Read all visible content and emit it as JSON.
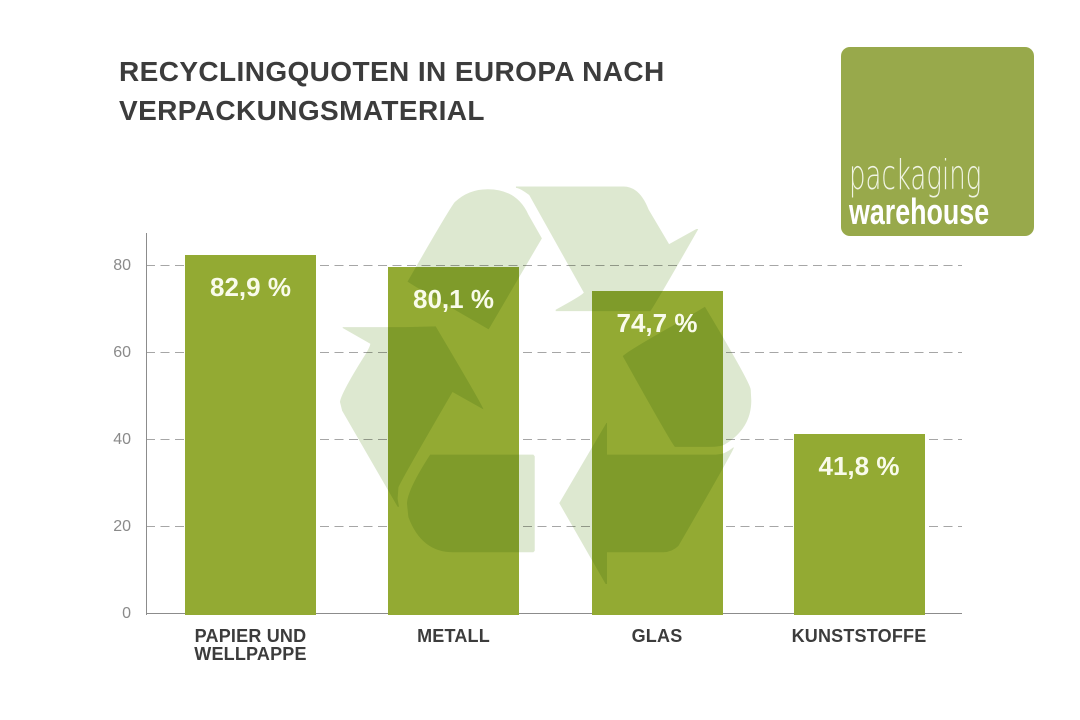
{
  "page": {
    "background": "#ffffff"
  },
  "title": {
    "line1": "RECYCLINGQUOTEN IN EUROPA NACH",
    "line2": "VERPACKUNGSMATERIAL",
    "color": "#3c3c3c"
  },
  "logo": {
    "word1": "packaging",
    "word2": "warehouse",
    "bg_color": "#98a94b",
    "word1_color": "#f0f4e3",
    "word2_color": "#ffffff"
  },
  "watermark": {
    "name": "recycling-symbol",
    "glyph": "♻",
    "color": "#dde8d0"
  },
  "chart_data": {
    "type": "bar",
    "categories": [
      "PAPIER UND WELLPAPPE",
      "METALL",
      "GLAS",
      "KUNSTSTOFFE"
    ],
    "values": [
      82.9,
      80.1,
      74.7,
      41.8
    ],
    "value_labels": [
      "82,9 %",
      "80,1 %",
      "74,7 %",
      "41,8 %"
    ],
    "yticks": [
      0,
      20,
      40,
      60,
      80
    ],
    "ylim": [
      0,
      88
    ],
    "xlabel": "",
    "ylabel": "",
    "grid": "dashed-horizontal",
    "legend": "none",
    "bar_color": "#93aa33",
    "value_label_color": "#f9fbea",
    "category_color": "#3c3c3c",
    "axis_color": "#8c8c8c",
    "tick_label_color": "#8a8a8a",
    "gridline_color": "#a6a6a6"
  }
}
